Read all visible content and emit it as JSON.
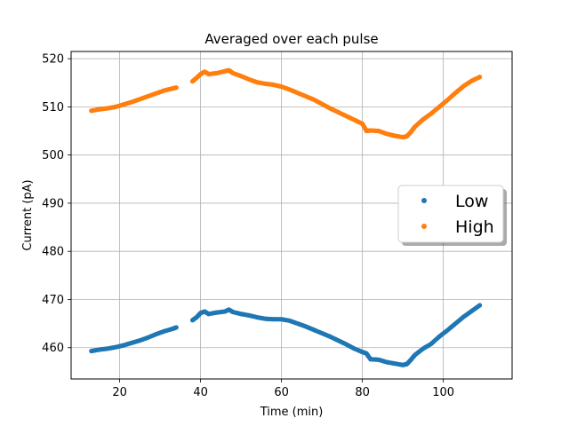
{
  "chart_data": {
    "type": "scatter",
    "title": "Averaged over each pulse",
    "xlabel": "Time (min)",
    "ylabel": "Current (pA)",
    "xlim": [
      8,
      117
    ],
    "ylim": [
      453.5,
      521.5
    ],
    "xticks": [
      20,
      40,
      60,
      80,
      100
    ],
    "yticks": [
      460,
      470,
      480,
      490,
      500,
      510,
      520
    ],
    "grid": true,
    "legend_position": "center-right",
    "series": [
      {
        "name": "Low",
        "color": "#1f77b4",
        "x": [
          13,
          15,
          17,
          19,
          21,
          23,
          25,
          27,
          29,
          31,
          33,
          34,
          38,
          39,
          40,
          41,
          42,
          44,
          46,
          47,
          48,
          50,
          52,
          54,
          56,
          58,
          60,
          62,
          64,
          66,
          68,
          70,
          72,
          74,
          76,
          78,
          80,
          81,
          82,
          84,
          86,
          88,
          90,
          91,
          92,
          93,
          95,
          97,
          99,
          101,
          103,
          105,
          107,
          109
        ],
        "y": [
          459.3,
          459.6,
          459.8,
          460.1,
          460.5,
          461.0,
          461.5,
          462.1,
          462.8,
          463.4,
          463.9,
          464.2,
          465.7,
          466.3,
          467.2,
          467.5,
          467.0,
          467.3,
          467.5,
          467.9,
          467.4,
          467.0,
          466.7,
          466.3,
          466.0,
          465.9,
          465.9,
          465.6,
          465.0,
          464.4,
          463.7,
          463.0,
          462.3,
          461.5,
          460.7,
          459.8,
          459.1,
          458.8,
          457.6,
          457.5,
          457.0,
          456.7,
          456.4,
          456.6,
          457.5,
          458.5,
          459.8,
          460.8,
          462.3,
          463.6,
          465.0,
          466.4,
          467.6,
          468.8
        ]
      },
      {
        "name": "High",
        "color": "#ff7f0e",
        "x": [
          13,
          15,
          17,
          19,
          21,
          23,
          25,
          27,
          29,
          31,
          33,
          34,
          38,
          39,
          40,
          41,
          42,
          44,
          46,
          47,
          48,
          50,
          52,
          54,
          56,
          58,
          60,
          62,
          64,
          66,
          68,
          70,
          72,
          74,
          76,
          78,
          80,
          81,
          82,
          84,
          86,
          88,
          90,
          91,
          92,
          93,
          95,
          97,
          99,
          101,
          103,
          105,
          107,
          109
        ],
        "y": [
          509.2,
          509.5,
          509.7,
          510.0,
          510.5,
          511.0,
          511.6,
          512.2,
          512.8,
          513.4,
          513.8,
          514.0,
          515.3,
          516.0,
          516.8,
          517.3,
          516.8,
          517.0,
          517.4,
          517.6,
          517.0,
          516.4,
          515.7,
          515.1,
          514.8,
          514.6,
          514.2,
          513.6,
          512.9,
          512.2,
          511.5,
          510.6,
          509.7,
          508.9,
          508.1,
          507.3,
          506.5,
          505.0,
          505.1,
          505.0,
          504.4,
          504.0,
          503.7,
          503.9,
          504.8,
          505.9,
          507.4,
          508.6,
          510.0,
          511.4,
          512.9,
          514.3,
          515.4,
          516.2
        ]
      }
    ]
  }
}
